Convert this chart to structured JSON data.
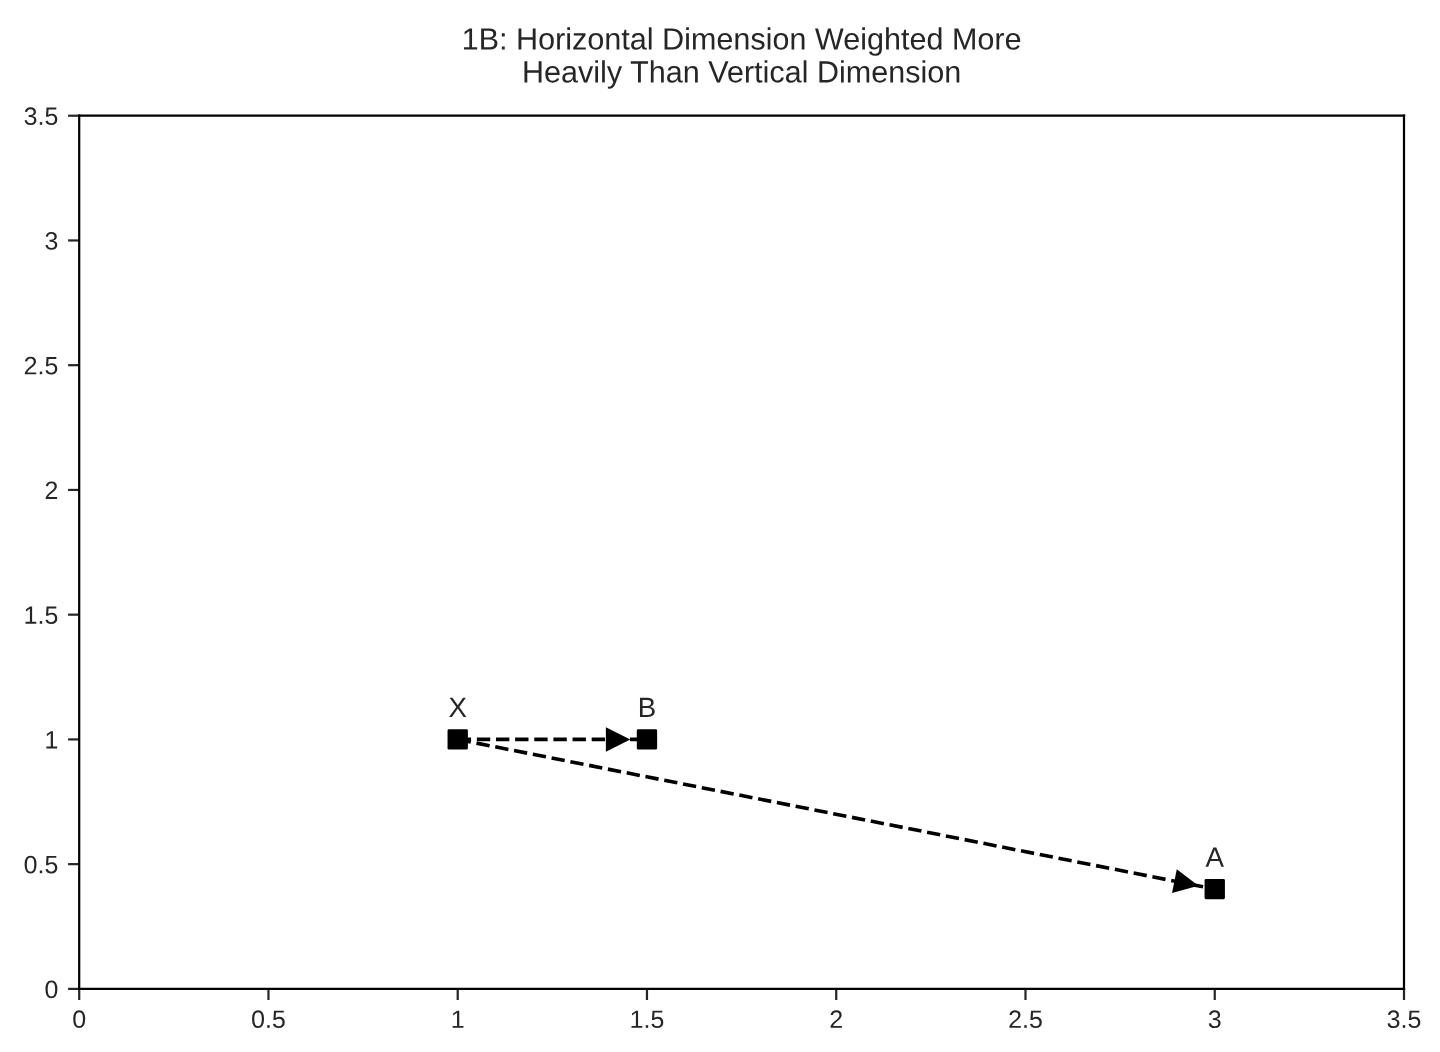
{
  "chart_data": {
    "type": "scatter",
    "title": "1B: Horizontal Dimension Weighted More\nHeavily Than Vertical Dimension",
    "series": [
      {
        "color": "#000000",
        "marker": "square",
        "x": [
          1,
          1.5,
          3
        ],
        "values": [
          1,
          1,
          0.4
        ]
      },
      {
        "type": "line",
        "color": "#000000",
        "line_style": "dashed",
        "marker": "none",
        "x": [
          1,
          1.5
        ],
        "values": [
          1,
          1
        ]
      },
      {
        "type": "line",
        "color": "#000000",
        "line_style": "dashed",
        "marker": "none",
        "x": [
          1,
          3
        ],
        "values": [
          1,
          0.4
        ]
      }
    ],
    "annotations": [
      {
        "text": "X",
        "x": 1,
        "y": 1
      },
      {
        "text": "B",
        "x": 1.5,
        "y": 1
      },
      {
        "text": "A",
        "x": 3,
        "y": 0.4
      }
    ],
    "xlim": [
      0,
      3.5
    ],
    "xticks": [
      0,
      0.5,
      1,
      1.5,
      2,
      2.5,
      3,
      3.5
    ],
    "ylim": [
      0,
      3.5
    ],
    "yticks": [
      0,
      0.5,
      1,
      1.5,
      2,
      2.5,
      3,
      3.5
    ],
    "grid": false,
    "legend": false
  }
}
